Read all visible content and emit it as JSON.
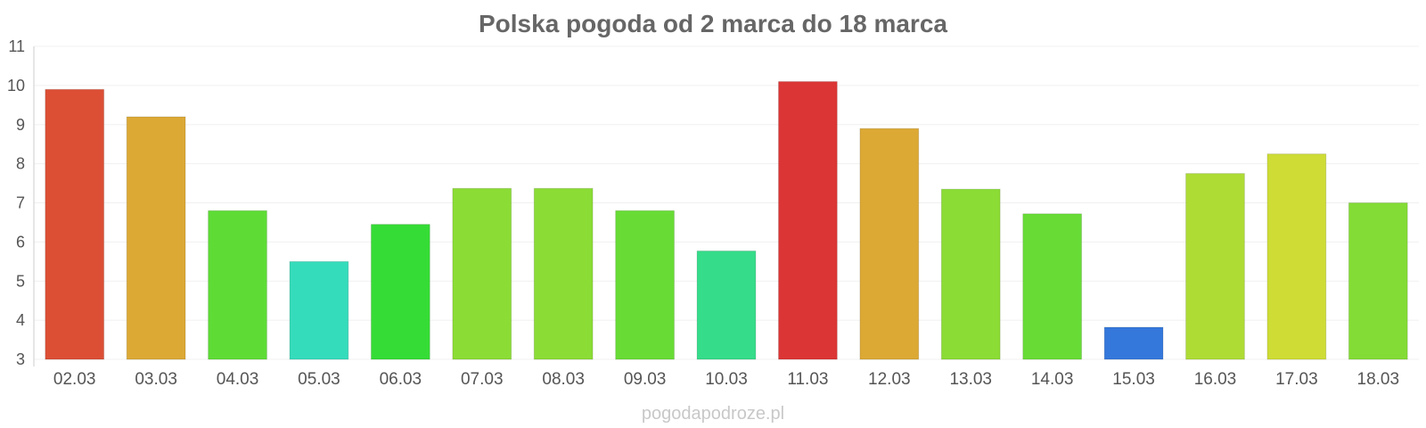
{
  "chart_data": {
    "type": "bar",
    "title": "Polska pogoda od 2 marca do 18 marca",
    "xlabel": "",
    "ylabel": "",
    "ylim": [
      3,
      11
    ],
    "yticks": [
      3,
      4,
      5,
      6,
      7,
      8,
      9,
      10,
      11
    ],
    "grid": true,
    "legend": "none",
    "categories": [
      "02.03",
      "03.03",
      "04.03",
      "05.03",
      "06.03",
      "07.03",
      "08.03",
      "09.03",
      "10.03",
      "11.03",
      "12.03",
      "13.03",
      "14.03",
      "15.03",
      "16.03",
      "17.03",
      "18.03"
    ],
    "values": [
      9.9,
      9.2,
      6.8,
      5.5,
      6.45,
      7.37,
      7.37,
      6.8,
      5.77,
      10.1,
      8.9,
      7.35,
      6.72,
      3.82,
      7.75,
      8.25,
      7.0
    ],
    "colors": [
      "#dc4f35",
      "#dca935",
      "#5edc35",
      "#35dcbb",
      "#35dc35",
      "#8bdc35",
      "#8bdc35",
      "#68dc35",
      "#35dc89",
      "#dc3535",
      "#dca935",
      "#8bdc35",
      "#68dc35",
      "#3578dc",
      "#aedc35",
      "#cedc35",
      "#83dc35"
    ]
  },
  "watermark": "pogodapodroze.pl"
}
